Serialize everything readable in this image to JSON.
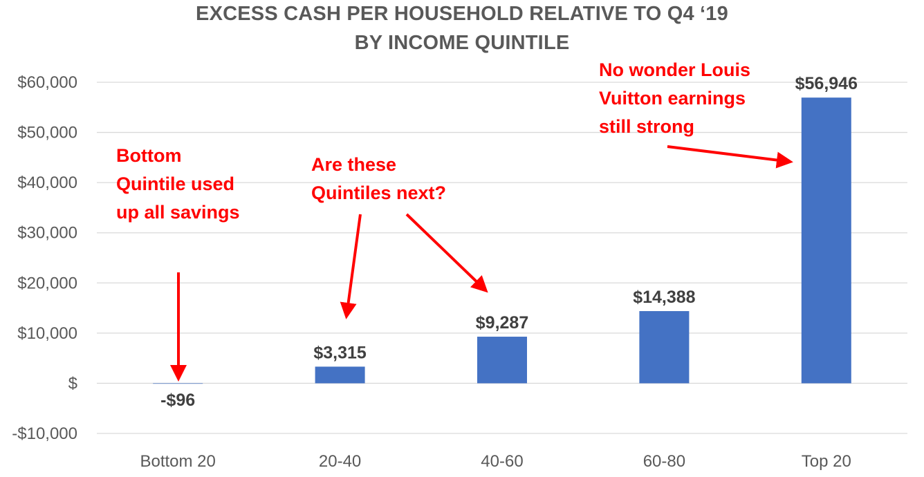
{
  "chart_data": {
    "type": "bar",
    "title_lines": [
      "EXCESS CASH PER HOUSEHOLD RELATIVE TO Q4 ‘19",
      "BY INCOME QUINTILE"
    ],
    "categories": [
      "Bottom 20",
      "20-40",
      "40-60",
      "60-80",
      "Top 20"
    ],
    "values": [
      -96,
      3315,
      9287,
      14388,
      56946
    ],
    "data_labels": [
      "-$96",
      "$3,315",
      "$9,287",
      "$14,388",
      "$56,946"
    ],
    "y_ticks": [
      -10000,
      0,
      10000,
      20000,
      30000,
      40000,
      50000,
      60000
    ],
    "y_tick_labels": [
      "-$10,000",
      "$",
      "$10,000",
      "$20,000",
      "$30,000",
      "$40,000",
      "$50,000",
      "$60,000"
    ],
    "ylim": [
      -10000,
      60000
    ],
    "grid": true,
    "legend": "none",
    "colors": {
      "bar": "#4472c4",
      "grid": "#d9d9d9",
      "annotation": "#ff0000",
      "text": "#595959"
    },
    "annotations": [
      {
        "lines": [
          "Bottom",
          "Quintile used",
          "up all savings"
        ]
      },
      {
        "lines": [
          "Are these",
          "Quintiles next?"
        ]
      },
      {
        "lines": [
          "No wonder Louis",
          "Vuitton earnings",
          "still strong"
        ]
      }
    ]
  }
}
